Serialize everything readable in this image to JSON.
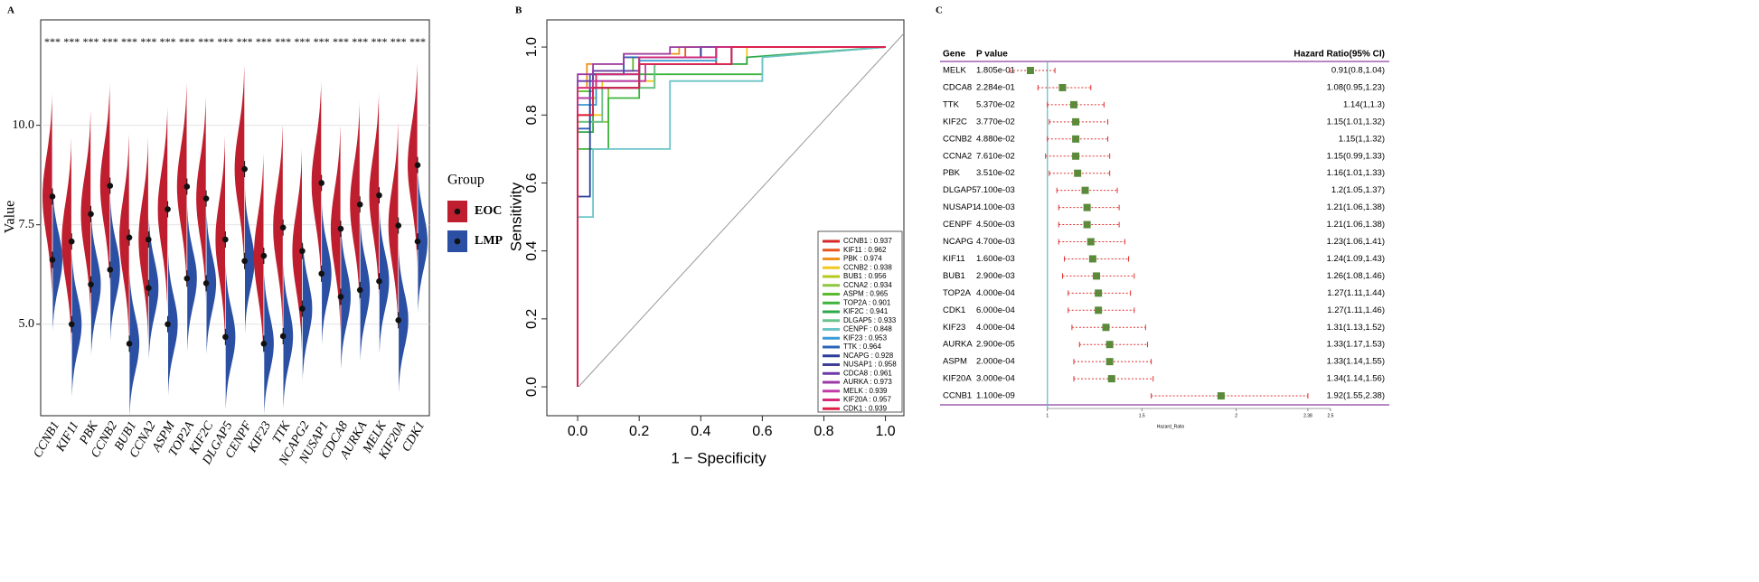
{
  "chart_data": [
    {
      "type": "violin",
      "label": "A",
      "ylabel": "Value",
      "legend_title": "Group",
      "categories": [
        "CCNB1",
        "KIF11",
        "PBK",
        "CCNB2",
        "BUB1",
        "CCNA2",
        "ASPM",
        "TOP2A",
        "KIF2C",
        "DLGAP5",
        "CENPF",
        "KIF23",
        "TTK",
        "NCAPG2",
        "NUSAP1",
        "CDCA8",
        "AURKA",
        "MELK",
        "KIF20A",
        "CDK1"
      ],
      "annotations": [
        "***",
        "***",
        "***",
        "***",
        "***",
        "***",
        "***",
        "***",
        "***",
        "***",
        "***",
        "***",
        "***",
        "***",
        "***",
        "***",
        "***",
        "***",
        "***",
        "***"
      ],
      "series": [
        {
          "name": "EOC",
          "color": "#bf1e2e",
          "values": [
            8.21,
            7.08,
            7.77,
            8.48,
            7.18,
            7.13,
            7.89,
            8.46,
            8.16,
            7.13,
            8.9,
            6.72,
            7.43,
            6.84,
            8.55,
            7.4,
            8.01,
            8.24,
            7.48,
            9.0
          ]
        },
        {
          "name": "LMP",
          "color": "#2b4fa3",
          "values": [
            6.62,
            5.0,
            6.0,
            6.37,
            4.51,
            5.91,
            5.0,
            6.15,
            6.03,
            4.68,
            6.59,
            4.51,
            4.7,
            5.39,
            6.27,
            5.69,
            5.86,
            6.08,
            5.1,
            7.08
          ]
        }
      ],
      "ylim": [
        2.7,
        12.65
      ],
      "yticks": [
        {
          "value": 5,
          "label": "5.0"
        },
        {
          "value": 7.5,
          "label": "7.5"
        },
        {
          "value": 10,
          "label": "10.0"
        }
      ],
      "grid": true
    },
    {
      "type": "roc",
      "label": "B",
      "xlabel": "1 − Specificity",
      "ylabel": "Sensitivity",
      "xlim": [
        -0.1,
        1.06
      ],
      "ylim": [
        -0.085,
        1.08
      ],
      "xticks": [
        {
          "value": 0,
          "label": "0.0"
        },
        {
          "value": 0.2,
          "label": "0.2"
        },
        {
          "value": 0.4,
          "label": "0.4"
        },
        {
          "value": 0.6,
          "label": "0.6"
        },
        {
          "value": 0.8,
          "label": "0.8"
        },
        {
          "value": 1,
          "label": "1.0"
        }
      ],
      "yticks": [
        {
          "value": 0,
          "label": "0.0"
        },
        {
          "value": 0.2,
          "label": "0.2"
        },
        {
          "value": 0.4,
          "label": "0.4"
        },
        {
          "value": 0.6,
          "label": "0.6"
        },
        {
          "value": 0.8,
          "label": "0.8"
        },
        {
          "value": 1,
          "label": "1.0"
        }
      ],
      "legend": "bottom-right",
      "series": [
        {
          "name": "CCNB1 : 0.937",
          "color": "#d62728",
          "x": [
            0,
            0,
            0.05,
            0.05,
            0.2,
            0.2,
            0.45,
            0.45,
            1
          ],
          "values": [
            0,
            0.8,
            0.8,
            0.88,
            0.88,
            0.95,
            0.95,
            1,
            1
          ]
        },
        {
          "name": "KIF11 : 0.962",
          "color": "#e8541e",
          "x": [
            0,
            0,
            0.05,
            0.05,
            0.15,
            0.15,
            0.35,
            0.35,
            1
          ],
          "values": [
            0,
            0.85,
            0.85,
            0.92,
            0.92,
            0.97,
            0.97,
            1,
            1
          ]
        },
        {
          "name": "PBK : 0.974",
          "color": "#f28e1c",
          "x": [
            0,
            0,
            0.03,
            0.03,
            0.15,
            0.15,
            0.33,
            0.33,
            1
          ],
          "values": [
            0,
            0.88,
            0.88,
            0.95,
            0.95,
            0.98,
            0.98,
            1,
            1
          ]
        },
        {
          "name": "CCNB2 : 0.938",
          "color": "#f2c81c",
          "x": [
            0,
            0,
            0.08,
            0.08,
            0.25,
            0.25,
            0.55,
            0.55,
            1
          ],
          "values": [
            0,
            0.8,
            0.8,
            0.9,
            0.9,
            0.95,
            0.95,
            1,
            1
          ]
        },
        {
          "name": "BUB1 : 0.956",
          "color": "#b5c81c",
          "x": [
            0,
            0,
            0.06,
            0.06,
            0.2,
            0.2,
            0.45,
            0.45,
            1
          ],
          "values": [
            0,
            0.85,
            0.85,
            0.92,
            0.92,
            0.97,
            0.97,
            1,
            1
          ]
        },
        {
          "name": "CCNA2 : 0.934",
          "color": "#8cc63f",
          "x": [
            0,
            0,
            0.1,
            0.1,
            0.25,
            0.25,
            0.5,
            0.5,
            1
          ],
          "values": [
            0,
            0.78,
            0.78,
            0.88,
            0.88,
            0.95,
            0.95,
            1,
            1
          ]
        },
        {
          "name": "ASPM : 0.965",
          "color": "#5cb82e",
          "x": [
            0,
            0,
            0.05,
            0.05,
            0.18,
            0.18,
            0.4,
            0.4,
            1
          ],
          "values": [
            0,
            0.87,
            0.87,
            0.93,
            0.93,
            0.97,
            0.97,
            1,
            1
          ]
        },
        {
          "name": "TOP2A : 0.901",
          "color": "#3cb43c",
          "x": [
            0,
            0,
            0.1,
            0.1,
            0.2,
            0.2,
            0.6,
            0.6,
            1
          ],
          "values": [
            0,
            0.7,
            0.7,
            0.85,
            0.85,
            0.92,
            0.92,
            0.97,
            1
          ]
        },
        {
          "name": "KIF2C : 0.941",
          "color": "#2ea84a",
          "x": [
            0,
            0,
            0.05,
            0.05,
            0.2,
            0.2,
            0.55,
            0.55,
            1
          ],
          "values": [
            0,
            0.75,
            0.75,
            0.88,
            0.88,
            0.95,
            0.95,
            0.97,
            1
          ]
        },
        {
          "name": "DLGAP5 : 0.933",
          "color": "#6cc28c",
          "x": [
            0,
            0,
            0.08,
            0.08,
            0.25,
            0.25,
            0.5,
            0.5,
            1
          ],
          "values": [
            0,
            0.78,
            0.78,
            0.88,
            0.88,
            0.95,
            0.95,
            1,
            1
          ]
        },
        {
          "name": "CENPF : 0.848",
          "color": "#6cc5c8",
          "x": [
            0,
            0,
            0.05,
            0.05,
            0.3,
            0.3,
            0.6,
            0.6,
            1
          ],
          "values": [
            0,
            0.5,
            0.5,
            0.7,
            0.7,
            0.9,
            0.9,
            0.97,
            1
          ]
        },
        {
          "name": "KIF23 : 0.953",
          "color": "#3a9ad6",
          "x": [
            0,
            0,
            0.06,
            0.06,
            0.2,
            0.2,
            0.45,
            0.45,
            1
          ],
          "values": [
            0,
            0.83,
            0.83,
            0.9,
            0.9,
            0.96,
            0.96,
            1,
            1
          ]
        },
        {
          "name": "TTK : 0.964",
          "color": "#2a64b8",
          "x": [
            0,
            0,
            0.04,
            0.04,
            0.15,
            0.15,
            0.4,
            0.4,
            1
          ],
          "values": [
            0,
            0.76,
            0.76,
            0.92,
            0.92,
            0.97,
            0.97,
            1,
            1
          ]
        },
        {
          "name": "NCAPG : 0.928",
          "color": "#2a3f9a",
          "x": [
            0,
            0,
            0.04,
            0.04,
            0.2,
            0.2,
            0.5,
            0.5,
            1
          ],
          "values": [
            0,
            0.56,
            0.56,
            0.88,
            0.88,
            0.95,
            0.95,
            1,
            1
          ]
        },
        {
          "name": "NUSAP1 : 0.958",
          "color": "#3f3f9a",
          "x": [
            0,
            0,
            0.05,
            0.05,
            0.2,
            0.2,
            0.4,
            0.4,
            1
          ],
          "values": [
            0,
            0.85,
            0.85,
            0.92,
            0.92,
            0.97,
            0.97,
            1,
            1
          ]
        },
        {
          "name": "CDCA8 : 0.961",
          "color": "#6a3aa6",
          "x": [
            0,
            0,
            0.05,
            0.05,
            0.2,
            0.2,
            0.45,
            0.45,
            1
          ],
          "values": [
            0,
            0.9,
            0.9,
            0.93,
            0.93,
            0.97,
            0.97,
            1,
            1
          ]
        },
        {
          "name": "AURKA : 0.973",
          "color": "#9a3aa6",
          "x": [
            0,
            0,
            0.05,
            0.05,
            0.15,
            0.15,
            0.3,
            0.3,
            1
          ],
          "values": [
            0,
            0.92,
            0.92,
            0.95,
            0.95,
            0.98,
            0.98,
            1,
            1
          ]
        },
        {
          "name": "MELK : 0.939",
          "color": "#c23aa6",
          "x": [
            0,
            0,
            0.05,
            0.05,
            0.22,
            0.22,
            0.5,
            0.5,
            1
          ],
          "values": [
            0,
            0.85,
            0.85,
            0.9,
            0.9,
            0.95,
            0.95,
            1,
            1
          ]
        },
        {
          "name": "KIF20A : 0.957",
          "color": "#d62a7a",
          "x": [
            0,
            0,
            0.06,
            0.06,
            0.2,
            0.2,
            0.45,
            0.45,
            1
          ],
          "values": [
            0,
            0.88,
            0.88,
            0.92,
            0.92,
            0.97,
            0.97,
            1,
            1
          ]
        },
        {
          "name": "CDK1 : 0.939",
          "color": "#e0204a",
          "x": [
            0,
            0,
            0.05,
            0.05,
            0.2,
            0.2,
            0.5,
            0.5,
            1
          ],
          "values": [
            0,
            0.8,
            0.8,
            0.88,
            0.88,
            0.95,
            0.95,
            1,
            1
          ]
        }
      ]
    },
    {
      "type": "forest",
      "label": "C",
      "xlabel": "Hazard_Ratio",
      "columns": [
        "Gene",
        "P value",
        "Hazard Ratio(95% CI)"
      ],
      "categories": [
        "MELK",
        "CDCA8",
        "TTK",
        "KIF2C",
        "CCNB2",
        "CCNA2",
        "PBK",
        "DLGAP5",
        "NUSAP1",
        "CENPF",
        "NCAPG",
        "KIF11",
        "BUB1",
        "TOP2A",
        "CDK1",
        "KIF23",
        "AURKA",
        "ASPM",
        "KIF20A",
        "CCNB1"
      ],
      "p_values": [
        "1.805e-01",
        "2.284e-01",
        "5.370e-02",
        "3.770e-02",
        "4.880e-02",
        "7.610e-02",
        "3.510e-02",
        "7.100e-03",
        "4.100e-03",
        "4.500e-03",
        "4.700e-03",
        "1.600e-03",
        "2.900e-03",
        "4.000e-04",
        "6.000e-04",
        "4.000e-04",
        "2.900e-05",
        "2.000e-04",
        "3.000e-04",
        "1.100e-09"
      ],
      "values": [
        0.91,
        1.08,
        1.14,
        1.15,
        1.15,
        1.15,
        1.16,
        1.2,
        1.21,
        1.21,
        1.23,
        1.24,
        1.26,
        1.27,
        1.27,
        1.31,
        1.33,
        1.33,
        1.34,
        1.92
      ],
      "lower": [
        0.8,
        0.95,
        1,
        1.01,
        1,
        0.99,
        1.01,
        1.05,
        1.06,
        1.06,
        1.06,
        1.09,
        1.08,
        1.11,
        1.11,
        1.13,
        1.17,
        1.14,
        1.14,
        1.55
      ],
      "upper": [
        1.04,
        1.23,
        1.3,
        1.32,
        1.32,
        1.33,
        1.33,
        1.37,
        1.38,
        1.38,
        1.41,
        1.43,
        1.46,
        1.44,
        1.46,
        1.52,
        1.53,
        1.55,
        1.56,
        2.38
      ],
      "value_labels": [
        "0.91(0.8,1.04)",
        "1.08(0.95,1.23)",
        "1.14(1,1.3)",
        "1.15(1.01,1.32)",
        "1.15(1,1.32)",
        "1.15(0.99,1.33)",
        "1.16(1.01,1.33)",
        "1.2(1.05,1.37)",
        "1.21(1.06,1.38)",
        "1.21(1.06,1.38)",
        "1.23(1.06,1.41)",
        "1.24(1.09,1.43)",
        "1.26(1.08,1.46)",
        "1.27(1.11,1.44)",
        "1.27(1.11,1.46)",
        "1.31(1.13,1.52)",
        "1.33(1.17,1.53)",
        "1.33(1.14,1.55)",
        "1.34(1.14,1.56)",
        "1.92(1.55,2.38)"
      ],
      "color": "#5a8a3a",
      "ci_color": "#e03030",
      "xlim": [
        0.8,
        2.5
      ],
      "xticks": [
        1,
        1.5,
        2,
        2.38,
        2.5
      ]
    }
  ]
}
